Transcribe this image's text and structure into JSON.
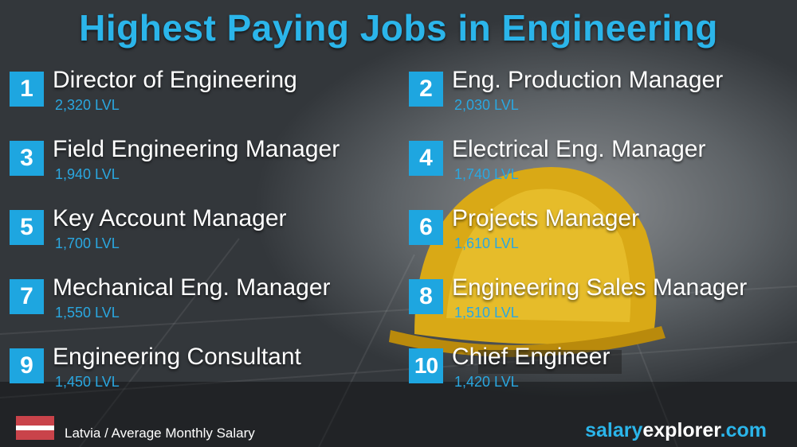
{
  "title": "Highest Paying Jobs in Engineering",
  "jobs": [
    {
      "rank": "1",
      "name": "Director of Engineering",
      "salary": "2,320 LVL"
    },
    {
      "rank": "2",
      "name": "Eng. Production Manager",
      "salary": "2,030 LVL"
    },
    {
      "rank": "3",
      "name": "Field Engineering Manager",
      "salary": "1,940 LVL"
    },
    {
      "rank": "4",
      "name": "Electrical Eng. Manager",
      "salary": "1,740 LVL"
    },
    {
      "rank": "5",
      "name": "Key Account Manager",
      "salary": "1,700 LVL"
    },
    {
      "rank": "6",
      "name": "Projects Manager",
      "salary": "1,610 LVL"
    },
    {
      "rank": "7",
      "name": "Mechanical Eng. Manager",
      "salary": "1,550 LVL"
    },
    {
      "rank": "8",
      "name": "Engineering Sales Manager",
      "salary": "1,510 LVL"
    },
    {
      "rank": "9",
      "name": "Engineering Consultant",
      "salary": "1,450 LVL"
    },
    {
      "rank": "10",
      "name": "Chief Engineer",
      "salary": "1,420 LVL"
    }
  ],
  "footer": {
    "caption": "Latvia / Average Monthly Salary",
    "brand_part1": "salary",
    "brand_part2": "explorer",
    "brand_part3": ".com"
  },
  "colors": {
    "accent": "#1ea6e0",
    "flag_red": "#c9434a",
    "helmet": "#e8b81c"
  }
}
